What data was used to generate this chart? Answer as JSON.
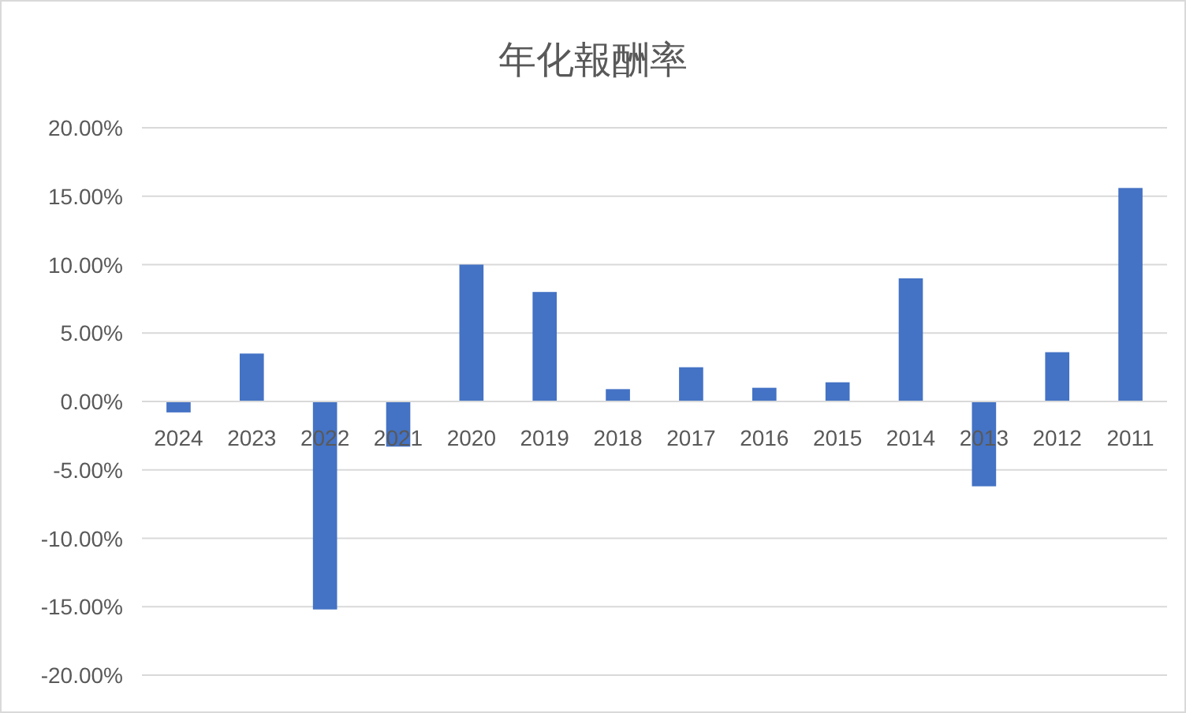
{
  "chart_data": {
    "type": "bar",
    "title": "年化報酬率",
    "categories": [
      "2024",
      "2023",
      "2022",
      "2021",
      "2020",
      "2019",
      "2018",
      "2017",
      "2016",
      "2015",
      "2014",
      "2013",
      "2012",
      "2011"
    ],
    "values": [
      -0.8,
      3.5,
      -15.2,
      -3.3,
      10.0,
      8.0,
      0.9,
      2.5,
      1.0,
      1.4,
      9.0,
      -6.2,
      3.6,
      15.6
    ],
    "color": "#4472c4",
    "ylim": [
      -20,
      20
    ],
    "yticks": [
      {
        "value": -20,
        "label": "-20.00%"
      },
      {
        "value": -15,
        "label": "-15.00%"
      },
      {
        "value": -10,
        "label": "-10.00%"
      },
      {
        "value": -5,
        "label": "-5.00%"
      },
      {
        "value": 0,
        "label": "0.00%"
      },
      {
        "value": 5,
        "label": "5.00%"
      },
      {
        "value": 10,
        "label": "10.00%"
      },
      {
        "value": 15,
        "label": "15.00%"
      },
      {
        "value": 20,
        "label": "20.00%"
      }
    ],
    "grid": "y"
  }
}
